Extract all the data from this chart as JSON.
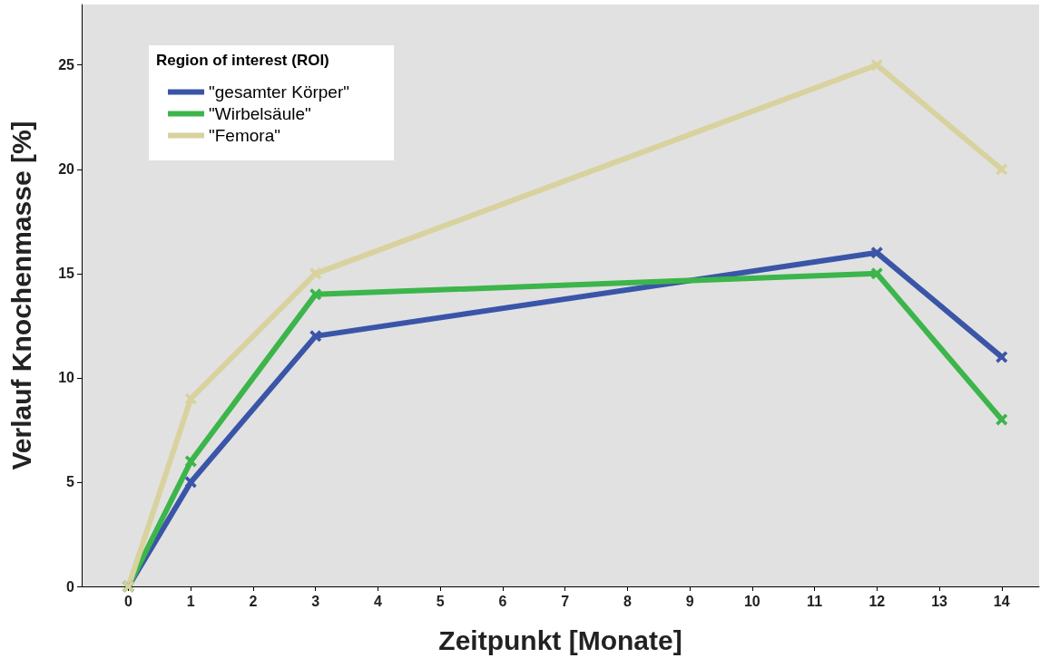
{
  "chart_data": {
    "type": "line",
    "xlabel": "Zeitpunkt [Monate]",
    "ylabel": "Verlauf Knochenmasse [%]",
    "legend_title": "Region of interest (ROI)",
    "x": [
      0,
      1,
      3,
      12,
      14
    ],
    "series": [
      {
        "name": "\"gesamter Körper\"",
        "color": "#3a55a8",
        "values": [
          0,
          5,
          12,
          16,
          11
        ]
      },
      {
        "name": "\"Wirbelsäule\"",
        "color": "#3cb54a",
        "values": [
          0,
          6,
          14,
          15,
          8
        ]
      },
      {
        "name": "\"Femora\"",
        "color": "#d8d29e",
        "values": [
          0,
          9,
          15,
          25,
          20
        ]
      }
    ],
    "xlim": [
      -0.75,
      14.6
    ],
    "xticks": [
      0,
      1,
      2,
      3,
      4,
      5,
      6,
      7,
      8,
      9,
      10,
      11,
      12,
      13,
      14
    ],
    "ylim": [
      0,
      27.9
    ],
    "yticks": [
      0,
      5,
      10,
      15,
      20,
      25
    ],
    "grid": false,
    "legend": "top left",
    "marker": "cross",
    "line_style": "solid"
  }
}
